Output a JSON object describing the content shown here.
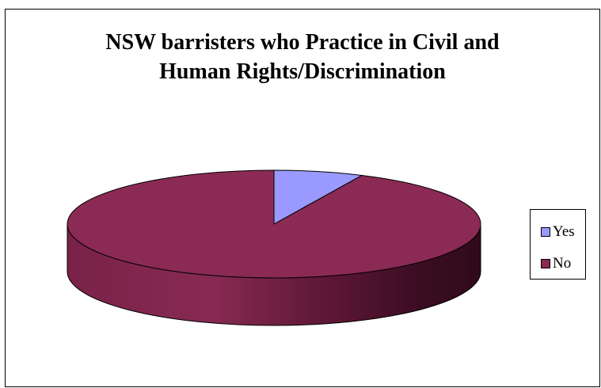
{
  "chart_data": {
    "type": "pie",
    "style": "3d-pie",
    "title": "NSW barristers who Practice in Civil and Human Rights/Discrimination",
    "title_lines": [
      "NSW barristers who Practice in Civil and",
      "Human Rights/Discrimination"
    ],
    "categories": [
      "Yes",
      "No"
    ],
    "values": [
      7,
      93
    ],
    "colors": [
      "#9999ff",
      "#8b2a55"
    ],
    "legend": {
      "position": "right",
      "entries": [
        "Yes",
        "No"
      ]
    }
  }
}
